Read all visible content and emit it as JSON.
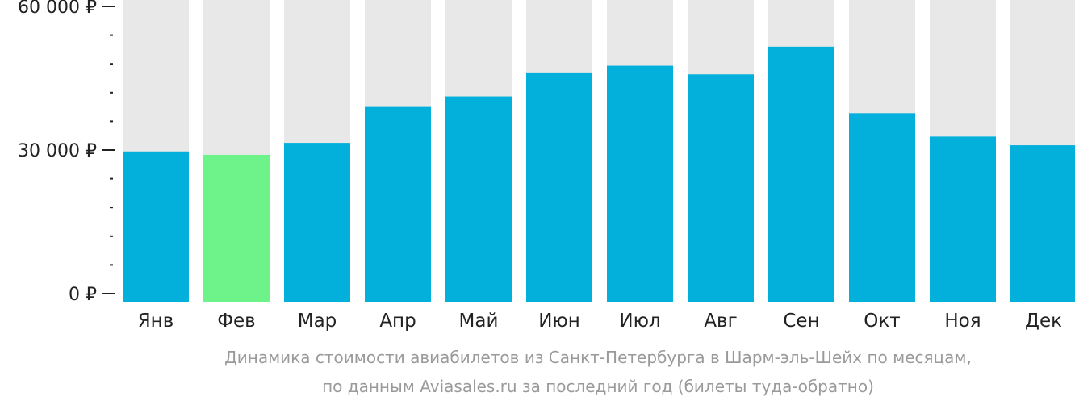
{
  "chart_data": {
    "type": "bar",
    "categories": [
      "Янв",
      "Фев",
      "Мар",
      "Апр",
      "Май",
      "Июн",
      "Июл",
      "Авг",
      "Сен",
      "Окт",
      "Ноя",
      "Дек"
    ],
    "values": [
      29700,
      29000,
      31500,
      39000,
      41200,
      46200,
      47600,
      45800,
      51600,
      37700,
      32800,
      31000
    ],
    "highlight_index": 1,
    "ylim": [
      0,
      60000
    ],
    "y_ticks": [
      {
        "value": 0,
        "label": "0 ₽"
      },
      {
        "value": 30000,
        "label": "30 000 ₽"
      },
      {
        "value": 60000,
        "label": "60 000 ₽"
      }
    ],
    "minor_tick_step": 6000,
    "caption_line1": "Динамика стоимости авиабилетов из Санкт-Петербурга в Шарм-эль-Шейх по месяцам,",
    "caption_line2": "по данным Aviasales.ru за последний год (билеты туда-обратно)",
    "colors": {
      "bar": "#03b0dc",
      "highlight": "#6ef28a",
      "track": "#e8e8e8",
      "axis": "#222222",
      "label": "#222222",
      "caption": "#9a9a9a"
    }
  }
}
